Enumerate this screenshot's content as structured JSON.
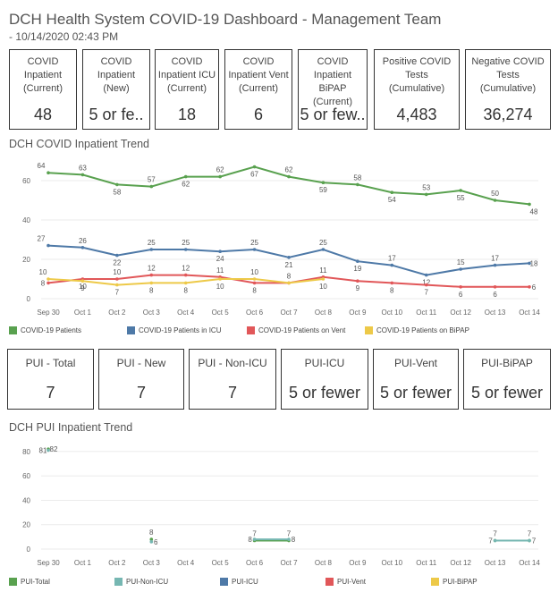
{
  "header": {
    "title": "DCH Health System COVID-19 Dashboard - Management Team",
    "subtitle": " - 10/14/2020 02:43 PM"
  },
  "kpis_top": [
    {
      "label": "COVID Inpatient (Current)",
      "value": "48"
    },
    {
      "label": "COVID Inpatient (New)",
      "value": "5 or fe.."
    },
    {
      "label": "COVID Inpatient ICU (Current)",
      "value": "18"
    },
    {
      "label": "COVID Inpatient Vent (Current)",
      "value": "6"
    },
    {
      "label": "COVID Inpatient BiPAP (Current)",
      "value": "5 or few.."
    },
    {
      "label": "Positive COVID Tests (Cumulative)",
      "value": "4,483"
    },
    {
      "label": "Negative COVID Tests (Cumulative)",
      "value": "36,274"
    }
  ],
  "kpis_pui": [
    {
      "label": "PUI - Total",
      "value": "7"
    },
    {
      "label": "PUI - New",
      "value": "7"
    },
    {
      "label": "PUI - Non-ICU",
      "value": "7"
    },
    {
      "label": "PUI-ICU",
      "value": "5 or fewer"
    },
    {
      "label": "PUI-Vent",
      "value": "5 or fewer"
    },
    {
      "label": "PUI-BiPAP",
      "value": "5 or fewer"
    }
  ],
  "trend1_title": "DCH COVID Inpatient Trend",
  "trend2_title": "DCH PUI Inpatient Trend",
  "legend1": [
    {
      "name": "COVID-19 Patients",
      "color": "#59a14f"
    },
    {
      "name": "COVID-19 Patients in ICU",
      "color": "#4e79a7"
    },
    {
      "name": "COVID-19 Patients on Vent",
      "color": "#e15759"
    },
    {
      "name": "COVID-19 Patients on BiPAP",
      "color": "#edc948"
    }
  ],
  "legend2": [
    {
      "name": "PUI-Total",
      "color": "#59a14f"
    },
    {
      "name": "PUI-Non-ICU",
      "color": "#76b7b2"
    },
    {
      "name": "PUI-ICU",
      "color": "#4e79a7"
    },
    {
      "name": "PUI-Vent",
      "color": "#e15759"
    },
    {
      "name": "PUI-BiPAP",
      "color": "#edc948"
    }
  ],
  "chart_data": [
    {
      "type": "line",
      "categories": [
        "Sep 30",
        "Oct 1",
        "Oct 2",
        "Oct 3",
        "Oct 4",
        "Oct 5",
        "Oct 6",
        "Oct 7",
        "Oct 8",
        "Oct 9",
        "Oct 10",
        "Oct 11",
        "Oct 12",
        "Oct 13",
        "Oct 14"
      ],
      "yticks": [
        0,
        20,
        40,
        60
      ],
      "ylim": [
        0,
        70
      ],
      "series": [
        {
          "name": "COVID-19 Patients",
          "color": "#59a14f",
          "values": [
            64,
            63,
            58,
            57,
            62,
            62,
            67,
            62,
            59,
            58,
            54,
            53,
            55,
            50,
            48
          ],
          "labels": [
            64,
            63,
            58,
            57,
            62,
            62,
            67,
            62,
            59,
            58,
            54,
            53,
            55,
            50,
            48
          ]
        },
        {
          "name": "COVID-19 Patients in ICU",
          "color": "#4e79a7",
          "values": [
            27,
            26,
            22,
            25,
            25,
            24,
            25,
            21,
            25,
            19,
            17,
            12,
            15,
            17,
            18
          ],
          "labels": [
            27,
            26,
            22,
            25,
            25,
            24,
            25,
            21,
            25,
            19,
            17,
            12,
            15,
            17,
            18
          ]
        },
        {
          "name": "COVID-19 Patients on Vent",
          "color": "#e15759",
          "values": [
            8,
            10,
            10,
            12,
            12,
            11,
            8,
            8,
            11,
            9,
            8,
            7,
            6,
            6,
            6
          ],
          "labels": [
            8,
            10,
            10,
            12,
            12,
            11,
            8,
            8,
            11,
            9,
            8,
            7,
            6,
            6,
            6
          ]
        },
        {
          "name": "COVID-19 Patients on BiPAP",
          "color": "#edc948",
          "values": [
            10,
            9,
            7,
            8,
            8,
            10,
            10,
            8,
            10,
            null,
            null,
            null,
            null,
            null,
            null
          ],
          "labels": [
            10,
            9,
            7,
            8,
            8,
            10,
            10,
            null,
            10,
            null,
            null,
            null,
            null,
            null,
            null
          ]
        }
      ]
    },
    {
      "type": "line",
      "categories": [
        "Sep 30",
        "Oct 1",
        "Oct 2",
        "Oct 3",
        "Oct 4",
        "Oct 5",
        "Oct 6",
        "Oct 7",
        "Oct 8",
        "Oct 9",
        "Oct 10",
        "Oct 11",
        "Oct 12",
        "Oct 13",
        "Oct 14"
      ],
      "yticks": [
        0,
        20,
        40,
        60,
        80
      ],
      "ylim": [
        0,
        88
      ],
      "series": [
        {
          "name": "PUI-Total",
          "color": "#59a14f",
          "values": [
            82,
            null,
            null,
            8,
            null,
            null,
            7,
            7,
            null,
            null,
            null,
            null,
            null,
            7,
            7
          ],
          "labels": [
            82,
            null,
            null,
            8,
            null,
            null,
            7,
            7,
            null,
            null,
            null,
            null,
            null,
            7,
            7
          ]
        },
        {
          "name": "PUI-Non-ICU",
          "color": "#76b7b2",
          "values": [
            81,
            null,
            null,
            6,
            null,
            null,
            8,
            8,
            null,
            null,
            null,
            null,
            null,
            7,
            7
          ],
          "labels": [
            81,
            null,
            null,
            6,
            null,
            null,
            8,
            8,
            null,
            null,
            null,
            null,
            null,
            7,
            7
          ]
        }
      ]
    }
  ]
}
